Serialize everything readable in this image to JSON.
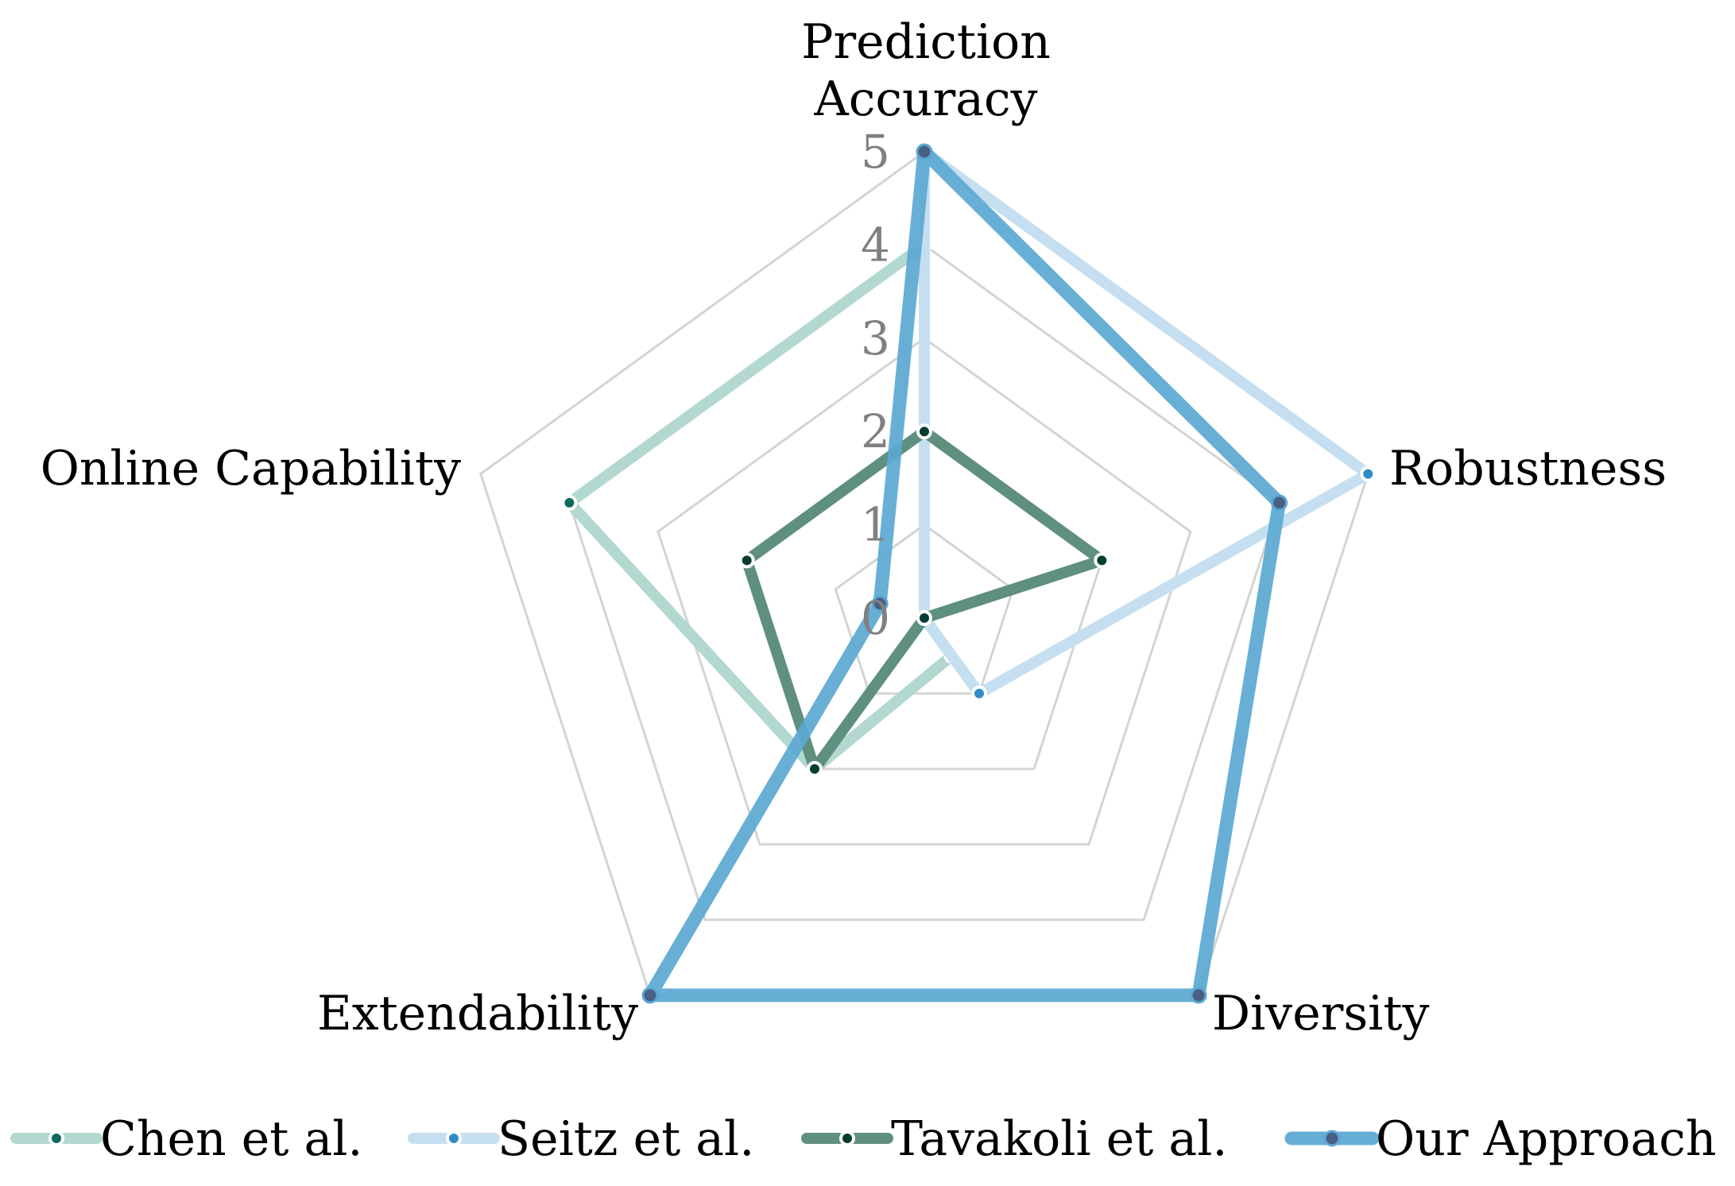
{
  "chart_data": {
    "type": "radar",
    "axes": [
      "Prediction\nAccuracy",
      "Robustness",
      "Diversity",
      "Extendability",
      "Online Capability"
    ],
    "range": [
      0,
      5
    ],
    "ticks": [
      "0",
      "1",
      "2",
      "3",
      "4",
      "5"
    ],
    "grid": true,
    "legend_position": "bottom",
    "series": [
      {
        "name": "Chen et al.",
        "values": [
          4,
          0,
          0.5,
          2,
          4
        ],
        "color": "#b2d8d0",
        "marker_color": "#0b6b5c",
        "marker_edge": "#ffffff",
        "opacity": 1,
        "style": "thin"
      },
      {
        "name": "Seitz et al.",
        "values": [
          5,
          5,
          1,
          0,
          0
        ],
        "color": "#c5dff0",
        "marker_color": "#2f8cc6",
        "marker_edge": "#ffffff",
        "opacity": 1,
        "style": "thin"
      },
      {
        "name": "Tavakoli et al.",
        "values": [
          2,
          2,
          0,
          2,
          2
        ],
        "color": "#5f8f7f",
        "marker_color": "#063d33",
        "marker_edge": "#ffffff",
        "opacity": 1,
        "style": "thin"
      },
      {
        "name": "Our Approach",
        "values": [
          5,
          4,
          5,
          5,
          0.5
        ],
        "color": "#5ba8d3",
        "marker_color": "#4a5f84",
        "marker_edge": "#5ba8d3",
        "opacity": 0.92,
        "style": "thick"
      }
    ]
  }
}
